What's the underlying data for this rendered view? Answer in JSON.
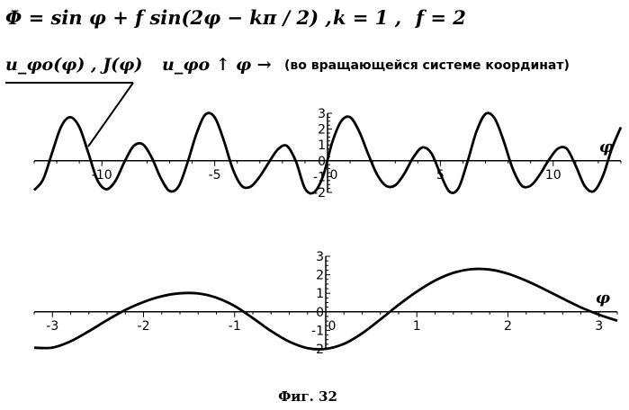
{
  "header": {
    "formula": "Φ = sin φ + f sin(2φ − kπ / 2) ,",
    "param_k": "k = 1 ,",
    "param_f": "f = 2",
    "curve_label": "u_φo(φ) , J(φ)",
    "u_arrow_label": "u_φo ↑",
    "phi_arrow_label": "φ →",
    "note": "(во вращающейся системе координат)"
  },
  "caption": "Фиг. 32",
  "chart_data": [
    {
      "type": "line",
      "name": "top",
      "title": "",
      "xlabel": "φ",
      "ylabel": "",
      "xlim": [
        -13.0,
        13.0
      ],
      "ylim": [
        -2,
        3
      ],
      "x_ticks": [
        -10,
        -5,
        0,
        5,
        10
      ],
      "x_tick_labels": [
        "-10",
        "-5",
        "0",
        "5",
        "10"
      ],
      "y_ticks": [
        -2,
        -1,
        0,
        1,
        2,
        3
      ],
      "y_tick_labels": [
        "-2",
        "-1",
        "0",
        "1",
        "2",
        "3"
      ],
      "grid": false,
      "series": [
        {
          "x": [
            -13.0,
            -12.6,
            -12.2,
            -11.8,
            -11.4,
            -11.0,
            -10.6,
            -10.2,
            -9.8,
            -9.4,
            -9.0,
            -8.6,
            -8.2,
            -7.8,
            -7.4,
            -7.0,
            -6.6,
            -6.2,
            -5.8,
            -5.4,
            -5.0,
            -4.6,
            -4.2,
            -3.8,
            -3.4,
            -3.0,
            -2.6,
            -2.2,
            -1.8,
            -1.4,
            -1.0,
            -0.6,
            -0.2,
            0.2,
            0.6,
            1.0,
            1.4,
            1.8,
            2.2,
            2.6,
            3.0,
            3.4,
            3.8,
            4.2,
            4.6,
            5.0,
            5.4,
            5.8,
            6.2,
            6.6,
            7.0,
            7.4,
            7.8,
            8.2,
            8.6,
            9.0,
            9.4,
            9.8,
            10.2,
            10.6,
            11.0,
            11.4,
            11.8,
            12.2,
            12.6,
            13.0
          ],
          "y": [
            -1.86,
            -1.17,
            0.54,
            2.17,
            2.75,
            2.13,
            0.49,
            -1.22,
            -1.8,
            -1.27,
            -0.07,
            0.92,
            1.05,
            0.23,
            -1.06,
            -1.91,
            -1.62,
            -0.09,
            1.75,
            2.94,
            2.74,
            1.3,
            -0.52,
            -1.59,
            -1.63,
            -0.99,
            -0.1,
            0.72,
            0.94,
            -0.04,
            -1.75,
            -2.0,
            -0.97,
            1.13,
            2.49,
            2.75,
            1.86,
            0.43,
            -0.88,
            -1.59,
            -1.55,
            -0.82,
            0.21,
            0.84,
            0.48,
            -0.83,
            -1.95,
            -1.74,
            -0.07,
            1.85,
            2.96,
            2.69,
            1.27,
            -0.48,
            -1.56,
            -1.57,
            -0.89,
            0.04,
            0.76,
            0.76,
            -0.32,
            -1.6,
            -1.92,
            -0.97,
            0.77,
            2.12
          ]
        }
      ]
    },
    {
      "type": "line",
      "name": "bottom",
      "title": "",
      "xlabel": "φ",
      "ylabel": "",
      "xlim": [
        -3.2,
        3.2
      ],
      "ylim": [
        -2,
        3
      ],
      "x_ticks": [
        -3,
        -2,
        -1,
        0,
        1,
        2,
        3
      ],
      "x_tick_labels": [
        "-3",
        "-2",
        "-1",
        "0",
        "1",
        "2",
        "3"
      ],
      "y_ticks": [
        -2,
        -1,
        0,
        1,
        2,
        3
      ],
      "y_tick_labels": [
        "-2",
        "-1",
        "0",
        "1",
        "2",
        "3"
      ],
      "grid": false,
      "series": [
        {
          "x": [
            -3.2,
            -3.0,
            -2.8,
            -2.6,
            -2.4,
            -2.2,
            -2.0,
            -1.8,
            -1.6,
            -1.4,
            -1.2,
            -1.0,
            -0.8,
            -0.6,
            -0.4,
            -0.2,
            0.0,
            0.2,
            0.4,
            0.6,
            0.8,
            1.0,
            1.2,
            1.4,
            1.6,
            1.8,
            2.0,
            2.2,
            2.4,
            2.6,
            2.8,
            3.0,
            3.2
          ],
          "y": [
            -1.94,
            -1.93,
            -1.59,
            -1.05,
            -0.45,
            0.1,
            0.53,
            0.84,
            1.0,
            0.99,
            0.76,
            0.31,
            -0.34,
            -1.04,
            -1.61,
            -1.96,
            -2.0,
            -1.73,
            -1.16,
            -0.41,
            0.38,
            1.09,
            1.69,
            2.1,
            2.3,
            2.28,
            2.06,
            1.68,
            1.22,
            0.72,
            0.24,
            -0.16,
            -0.48
          ]
        }
      ]
    }
  ]
}
